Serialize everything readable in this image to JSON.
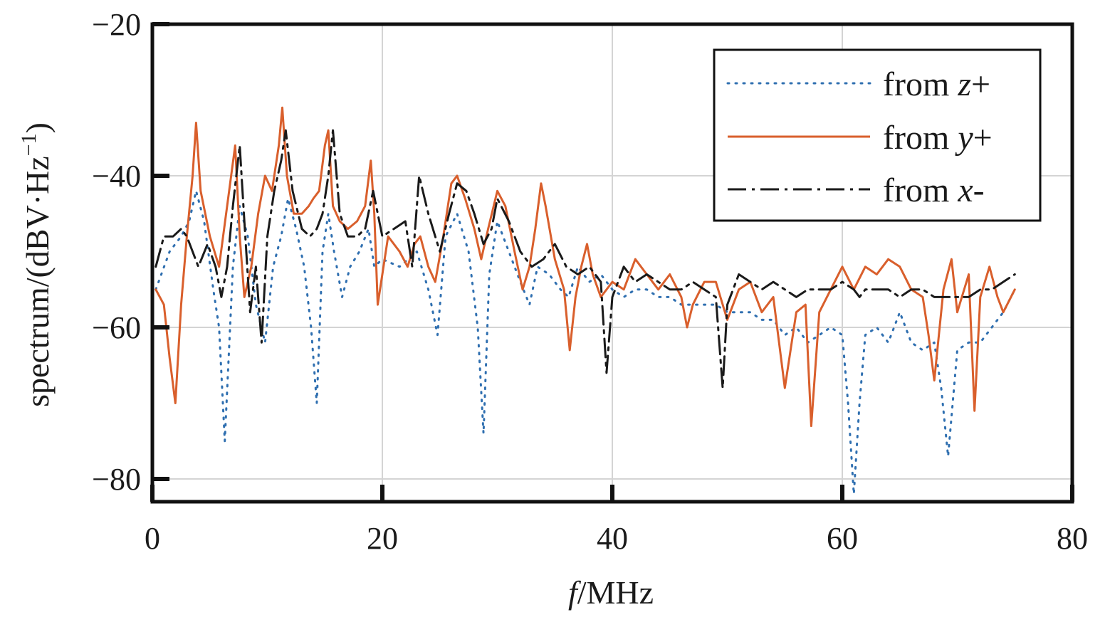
{
  "chart_data": {
    "type": "line",
    "xlabel": {
      "italic": "f",
      "rest": "/MHz"
    },
    "ylabel": {
      "main": "spectrum/(dBV·Hz",
      "sup": "−1",
      "close": ")"
    },
    "xlim": [
      0,
      80
    ],
    "ylim": [
      -83,
      -20
    ],
    "xticks": [
      0,
      20,
      40,
      60,
      80
    ],
    "xtick_labels": [
      "0",
      "20",
      "40",
      "60",
      "80"
    ],
    "yticks": [
      -20,
      -40,
      -60,
      -80
    ],
    "ytick_labels": [
      "−20",
      "−40",
      "−60",
      "−80"
    ],
    "grid": true,
    "legend_position": "top-right",
    "series": [
      {
        "name": "from z+",
        "legend": {
          "prefix": "from ",
          "var": "z",
          "suffix": "+"
        },
        "color": "#2f6fb0",
        "style": "dotted",
        "x": [
          0.3,
          1.5,
          2.5,
          3.2,
          3.8,
          4.5,
          5.3,
          5.8,
          6.3,
          7.0,
          7.6,
          8.3,
          9.0,
          9.8,
          10.5,
          11.2,
          11.8,
          12.5,
          13.2,
          13.8,
          14.3,
          14.8,
          15.3,
          15.8,
          16.5,
          17.2,
          18.0,
          18.8,
          19.3,
          20.0,
          21.5,
          23.0,
          24.0,
          24.8,
          25.5,
          26.5,
          27.5,
          28.3,
          28.8,
          29.3,
          30.0,
          31.0,
          32.0,
          32.8,
          33.5,
          34.5,
          35.5,
          36.2,
          37.0,
          38.0,
          39.0,
          40.0,
          41.0,
          42.0,
          43.0,
          44.0,
          45.0,
          46.0,
          47.0,
          48.0,
          49.0,
          50.0,
          51.0,
          52.0,
          53.0,
          54.0,
          55.0,
          56.0,
          57.0,
          58.0,
          59.0,
          60.0,
          60.5,
          61.0,
          61.5,
          62.0,
          63.0,
          64.0,
          65.0,
          66.0,
          67.0,
          68.0,
          68.6,
          69.2,
          70.0,
          71.0,
          72.0,
          73.0,
          74.0,
          75.0
        ],
        "y": [
          -55,
          -50,
          -48,
          -46,
          -42,
          -46,
          -55,
          -60,
          -75,
          -52,
          -44,
          -48,
          -57,
          -62,
          -52,
          -48,
          -43,
          -47,
          -52,
          -60,
          -70,
          -50,
          -45,
          -50,
          -56,
          -52,
          -50,
          -47,
          -52,
          -51,
          -52,
          -50,
          -55,
          -61,
          -48,
          -45,
          -50,
          -60,
          -74,
          -53,
          -46,
          -50,
          -54,
          -57,
          -52,
          -53,
          -55,
          -56,
          -52,
          -54,
          -53,
          -55,
          -56,
          -55,
          -55,
          -56,
          -56,
          -57,
          -57,
          -57,
          -57,
          -58,
          -58,
          -58,
          -59,
          -59,
          -61,
          -60,
          -62,
          -61,
          -60,
          -61,
          -70,
          -82,
          -70,
          -61,
          -60,
          -62,
          -58,
          -62,
          -63,
          -62,
          -68,
          -77,
          -63,
          -62,
          -62,
          -60,
          -58,
          -55
        ]
      },
      {
        "name": "from y+",
        "legend": {
          "prefix": "from ",
          "var": "y",
          "suffix": "+"
        },
        "color": "#d95f2c",
        "style": "solid",
        "x": [
          0.3,
          1.0,
          1.5,
          2.0,
          2.5,
          3.0,
          3.5,
          3.8,
          4.2,
          5.0,
          5.8,
          6.5,
          7.2,
          7.6,
          8.0,
          8.6,
          9.2,
          9.8,
          10.4,
          11.0,
          11.3,
          11.7,
          12.3,
          13.0,
          13.6,
          14.0,
          14.5,
          15.0,
          15.3,
          15.7,
          16.3,
          17.0,
          17.8,
          18.5,
          19.0,
          19.3,
          19.6,
          20.5,
          21.5,
          22.2,
          22.8,
          23.3,
          24.0,
          24.6,
          25.3,
          26.0,
          26.5,
          27.2,
          28.0,
          28.6,
          29.2,
          30.0,
          30.7,
          31.5,
          32.2,
          32.8,
          33.3,
          33.8,
          34.2,
          35.0,
          35.8,
          36.3,
          36.8,
          37.3,
          37.8,
          38.3,
          39.0,
          40.0,
          41.0,
          42.0,
          43.0,
          44.0,
          45.0,
          46.0,
          46.5,
          47.0,
          48.0,
          49.0,
          50.0,
          51.0,
          52.0,
          53.0,
          54.0,
          54.5,
          55.0,
          56.0,
          56.8,
          57.3,
          58.0,
          59.0,
          60.0,
          61.0,
          62.0,
          63.0,
          64.0,
          65.0,
          66.0,
          67.0,
          67.5,
          68.0,
          68.8,
          69.5,
          70.0,
          71.0,
          71.5,
          72.0,
          72.8,
          73.5,
          74.0,
          75.0
        ],
        "y": [
          -55,
          -57,
          -64,
          -70,
          -57,
          -48,
          -40,
          -33,
          -42,
          -48,
          -52,
          -44,
          -36,
          -48,
          -56,
          -52,
          -45,
          -40,
          -42,
          -36,
          -31,
          -40,
          -45,
          -45,
          -44,
          -43,
          -42,
          -36,
          -34,
          -44,
          -46,
          -47,
          -46,
          -44,
          -38,
          -45,
          -57,
          -48,
          -50,
          -52,
          -49,
          -48,
          -52,
          -54,
          -48,
          -41,
          -40,
          -43,
          -47,
          -51,
          -47,
          -42,
          -44,
          -50,
          -55,
          -52,
          -47,
          -41,
          -44,
          -51,
          -55,
          -63,
          -56,
          -52,
          -49,
          -53,
          -56,
          -54,
          -55,
          -51,
          -53,
          -55,
          -53,
          -56,
          -60,
          -57,
          -54,
          -54,
          -59,
          -55,
          -54,
          -58,
          -56,
          -62,
          -68,
          -58,
          -57,
          -73,
          -58,
          -55,
          -52,
          -55,
          -52,
          -53,
          -51,
          -52,
          -55,
          -56,
          -61,
          -67,
          -55,
          -51,
          -58,
          -53,
          -71,
          -56,
          -52,
          -56,
          -58,
          -55
        ]
      },
      {
        "name": "from x-",
        "legend": {
          "prefix": "from ",
          "var": "x",
          "suffix": "-"
        },
        "color": "#1a1a1a",
        "style": "dashdot",
        "x": [
          0.3,
          1.0,
          1.8,
          2.5,
          3.0,
          3.5,
          4.0,
          4.8,
          5.5,
          6.0,
          6.5,
          7.0,
          7.6,
          8.0,
          8.5,
          9.0,
          9.5,
          10.0,
          10.6,
          11.2,
          11.6,
          12.2,
          13.0,
          13.7,
          14.3,
          14.8,
          15.3,
          15.7,
          16.3,
          17.0,
          17.8,
          18.5,
          19.2,
          20.0,
          21.0,
          22.0,
          22.6,
          23.2,
          24.0,
          25.0,
          25.8,
          26.5,
          27.3,
          28.0,
          28.8,
          29.5,
          30.0,
          31.0,
          32.0,
          33.0,
          34.0,
          35.0,
          36.0,
          37.0,
          38.0,
          39.0,
          39.5,
          40.0,
          41.0,
          42.0,
          43.0,
          44.0,
          45.0,
          46.0,
          47.0,
          48.0,
          49.0,
          49.6,
          50.0,
          51.0,
          52.0,
          53.0,
          54.0,
          55.0,
          56.0,
          57.0,
          58.0,
          59.0,
          60.0,
          61.0,
          61.5,
          62.0,
          63.0,
          64.0,
          65.0,
          66.0,
          67.0,
          68.0,
          69.0,
          70.0,
          71.0,
          72.0,
          73.0,
          74.0,
          75.0
        ],
        "y": [
          -52,
          -48,
          -48,
          -47,
          -48,
          -50,
          -52,
          -49,
          -52,
          -56,
          -52,
          -44,
          -36,
          -46,
          -58,
          -52,
          -62,
          -48,
          -42,
          -38,
          -34,
          -42,
          -47,
          -48,
          -47,
          -45,
          -40,
          -34,
          -45,
          -48,
          -48,
          -47,
          -42,
          -48,
          -47,
          -46,
          -52,
          -40,
          -45,
          -50,
          -45,
          -41,
          -42,
          -45,
          -49,
          -47,
          -43,
          -46,
          -50,
          -52,
          -51,
          -49,
          -52,
          -53,
          -52,
          -54,
          -66,
          -56,
          -52,
          -54,
          -53,
          -54,
          -55,
          -55,
          -54,
          -55,
          -56,
          -68,
          -57,
          -53,
          -54,
          -55,
          -54,
          -55,
          -56,
          -55,
          -55,
          -55,
          -54,
          -55,
          -56,
          -55,
          -55,
          -55,
          -56,
          -55,
          -55,
          -56,
          -56,
          -56,
          -56,
          -55,
          -55,
          -54,
          -53
        ]
      }
    ]
  }
}
